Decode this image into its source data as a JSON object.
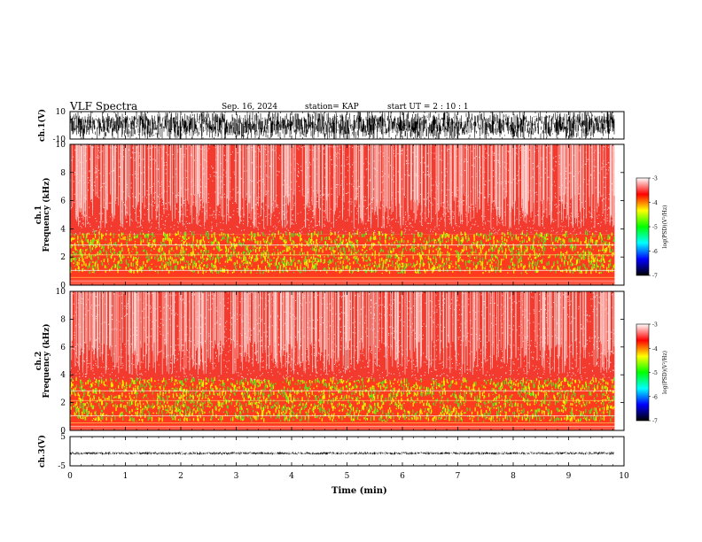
{
  "header": {
    "title": "VLF Spectra",
    "date": "Sep. 16, 2024",
    "station": "station= KAP",
    "start_ut": "start  UT =   2  : 10 : 1"
  },
  "chart_data": {
    "type": "heatmap",
    "x": {
      "label": "Time  (min)",
      "range": [
        0,
        10
      ],
      "ticks": [
        "0",
        "1",
        "2",
        "3",
        "4",
        "5",
        "6",
        "7",
        "8",
        "9",
        "10"
      ],
      "data_end": 9.83
    },
    "panels": [
      {
        "name": "ch.1(V)",
        "type": "line",
        "ylabel": "ch.1(V)",
        "ylim": [
          -10,
          10
        ],
        "yticks": [
          "10",
          "-10"
        ],
        "amplitude_range": [
          -10,
          10
        ]
      },
      {
        "name": "ch.1 spectrogram",
        "type": "heatmap",
        "ylabel": [
          "ch.1",
          "Frequency  (kHz)"
        ],
        "ylim": [
          0,
          10
        ],
        "yticks": [
          "0",
          "2",
          "4",
          "6",
          "8",
          "10"
        ],
        "bands_khz": [
          {
            "from": 0.8,
            "to": 3.6,
            "level": "-5"
          },
          {
            "from": 3.6,
            "to": 10,
            "level": "-4"
          }
        ]
      },
      {
        "name": "ch.2 spectrogram",
        "type": "heatmap",
        "ylabel": [
          "ch.2",
          "Frequency  (kHz)"
        ],
        "ylim": [
          0,
          10
        ],
        "yticks": [
          "0",
          "2",
          "4",
          "6",
          "8",
          "10"
        ],
        "bands_khz": [
          {
            "from": 0.6,
            "to": 3.6,
            "level": "-5"
          },
          {
            "from": 3.6,
            "to": 10,
            "level": "-4"
          }
        ]
      },
      {
        "name": "ch.3(V)",
        "type": "line",
        "ylabel": "ch.3(V)",
        "ylim": [
          -5,
          5
        ],
        "yticks": [
          "5",
          "-5"
        ],
        "amplitude_range": [
          -1.2,
          -0.2
        ]
      }
    ],
    "colorbar": {
      "label": "log(PSD)(V²/Hz)",
      "range": [
        -7,
        -3
      ],
      "ticks": [
        "-3",
        "-4",
        "-5",
        "-6",
        "-7"
      ],
      "colors": [
        "#000000",
        "#0000ff",
        "#00ffff",
        "#00ff00",
        "#ffff00",
        "#ff0000",
        "#ffffff"
      ]
    }
  }
}
